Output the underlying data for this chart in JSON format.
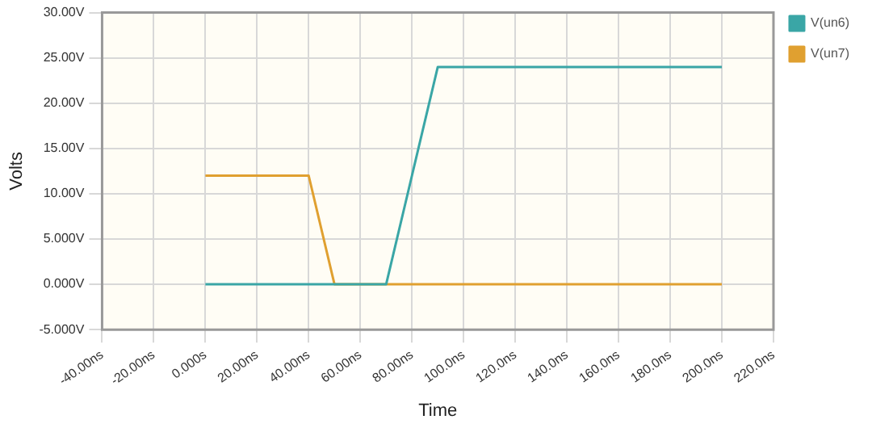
{
  "chart_data": {
    "type": "line",
    "xlabel": "Time",
    "ylabel": "Volts",
    "xlim": [
      -40,
      220
    ],
    "xticks": [
      {
        "value": -40,
        "label": "-40.00ns"
      },
      {
        "value": -20,
        "label": "-20.00ns"
      },
      {
        "value": 0,
        "label": "0.000s"
      },
      {
        "value": 20,
        "label": "20.00ns"
      },
      {
        "value": 40,
        "label": "40.00ns"
      },
      {
        "value": 60,
        "label": "60.00ns"
      },
      {
        "value": 80,
        "label": "80.00ns"
      },
      {
        "value": 100,
        "label": "100.0ns"
      },
      {
        "value": 120,
        "label": "120.0ns"
      },
      {
        "value": 140,
        "label": "140.0ns"
      },
      {
        "value": 160,
        "label": "160.0ns"
      },
      {
        "value": 180,
        "label": "180.0ns"
      },
      {
        "value": 200,
        "label": "200.0ns"
      },
      {
        "value": 220,
        "label": "220.0ns"
      }
    ],
    "ylim": [
      -5,
      30
    ],
    "yticks": [
      {
        "value": -5,
        "label": "-5.000V"
      },
      {
        "value": 0,
        "label": "0.000V"
      },
      {
        "value": 5,
        "label": "5.000V"
      },
      {
        "value": 10,
        "label": "10.00V"
      },
      {
        "value": 15,
        "label": "15.00V"
      },
      {
        "value": 20,
        "label": "20.00V"
      },
      {
        "value": 25,
        "label": "25.00V"
      },
      {
        "value": 30,
        "label": "30.00V"
      }
    ],
    "grid": true,
    "legend": "top right",
    "marker": "none",
    "line_style": "solid",
    "series": [
      {
        "name": "V(un6)",
        "color": "#3aa6a6",
        "x": [
          0,
          70,
          90,
          200
        ],
        "values": [
          0,
          0,
          24,
          24
        ]
      },
      {
        "name": "V(un7)",
        "color": "#e0a030",
        "x": [
          0,
          40,
          50,
          200
        ],
        "values": [
          12,
          12,
          0,
          0
        ]
      }
    ]
  }
}
